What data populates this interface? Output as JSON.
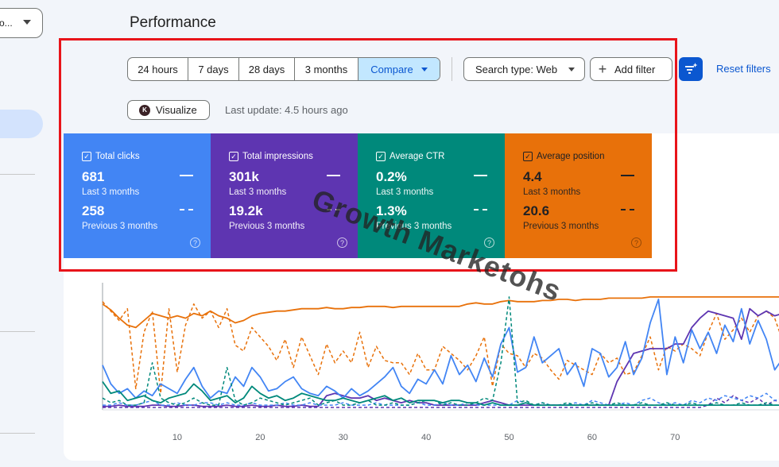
{
  "property_selector": {
    "label": "o..."
  },
  "page": {
    "title": "Performance"
  },
  "toolbar": {
    "ranges": [
      {
        "label": "24 hours"
      },
      {
        "label": "7 days"
      },
      {
        "label": "28 days"
      },
      {
        "label": "3 months"
      }
    ],
    "compare_label": "Compare",
    "search_type_label": "Search type: Web",
    "add_filter_label": "Add filter",
    "reset_filters_label": "Reset filters"
  },
  "visualize_label": "Visualize",
  "last_update": "Last update: 4.5 hours ago",
  "metrics": [
    {
      "label": "Total clicks",
      "value_current": "681",
      "period_current": "Last 3 months",
      "value_previous": "258",
      "period_previous": "Previous 3 months",
      "color": "#4285f4"
    },
    {
      "label": "Total impressions",
      "value_current": "301k",
      "period_current": "Last 3 months",
      "value_previous": "19.2k",
      "period_previous": "Previous 3 months",
      "color": "#5e35b1"
    },
    {
      "label": "Average CTR",
      "value_current": "0.2%",
      "period_current": "Last 3 months",
      "value_previous": "1.3%",
      "period_previous": "Previous 3 months",
      "color": "#00897b"
    },
    {
      "label": "Average position",
      "value_current": "4.4",
      "period_current": "Last 3 months",
      "value_previous": "20.6",
      "period_previous": "Previous 3 months",
      "color": "#e8710a"
    }
  ],
  "watermark": "Growth Marketohs",
  "chart_data": {
    "type": "line",
    "x": [
      1,
      2,
      3,
      4,
      5,
      6,
      7,
      8,
      9,
      10,
      11,
      12,
      13,
      14,
      15,
      16,
      17,
      18,
      19,
      20,
      21,
      22,
      23,
      24,
      25,
      26,
      27,
      28,
      29,
      30,
      31,
      32,
      33,
      34,
      35,
      36,
      37,
      38,
      39,
      40,
      41,
      42,
      43,
      44,
      45,
      46,
      47,
      48,
      49,
      50,
      51,
      52,
      53,
      54,
      55,
      56,
      57,
      58,
      59,
      60,
      61,
      62,
      63,
      64,
      65,
      66,
      67,
      68,
      69,
      70,
      71,
      72,
      73,
      74,
      75,
      76,
      77,
      78,
      79,
      80,
      81,
      82,
      83
    ],
    "xticks": [
      "10",
      "20",
      "30",
      "40",
      "50",
      "60",
      "70"
    ],
    "xtick_values": [
      10,
      20,
      30,
      40,
      50,
      60,
      70
    ],
    "xlim": [
      1,
      83
    ],
    "ylim": [
      0,
      100
    ],
    "grid": false,
    "series": [
      {
        "color": "#e8710a",
        "style": "solid",
        "values": [
          90,
          85,
          78,
          72,
          70,
          76,
          82,
          80,
          78,
          80,
          78,
          82,
          80,
          84,
          80,
          78,
          74,
          76,
          80,
          82,
          83,
          84,
          84,
          85,
          86,
          86,
          86,
          87,
          86,
          86,
          87,
          87,
          88,
          88,
          88,
          87,
          88,
          88,
          88,
          88,
          88,
          88,
          88,
          88,
          90,
          91,
          90,
          90,
          92,
          93,
          92,
          92,
          92,
          93,
          93,
          94,
          94,
          93,
          94,
          94,
          94,
          95,
          95,
          95,
          95,
          95,
          96,
          96,
          96,
          96,
          96,
          96,
          96,
          96,
          96,
          96,
          96,
          96,
          96,
          96,
          96,
          96,
          96
        ]
      },
      {
        "color": "#e8710a",
        "style": "dashed",
        "values": [
          92,
          84,
          76,
          86,
          18,
          66,
          84,
          14,
          86,
          32,
          72,
          90,
          78,
          84,
          70,
          86,
          55,
          50,
          70,
          62,
          54,
          42,
          60,
          36,
          62,
          46,
          30,
          56,
          40,
          50,
          40,
          66,
          36,
          54,
          42,
          40,
          40,
          30,
          48,
          34,
          34,
          54,
          48,
          42,
          34,
          46,
          62,
          20,
          56,
          48,
          46,
          36,
          48,
          44,
          34,
          26,
          42,
          38,
          34,
          30,
          48,
          40,
          44,
          30,
          32,
          46,
          62,
          34,
          54,
          50,
          56,
          52,
          46,
          66,
          82,
          60,
          68,
          78,
          66,
          80,
          84,
          78,
          58
        ]
      },
      {
        "color": "#5e35b1",
        "style": "solid",
        "values": [
          3,
          3,
          4,
          3,
          3,
          3,
          4,
          4,
          3,
          3,
          4,
          4,
          3,
          3,
          3,
          4,
          3,
          3,
          4,
          3,
          3,
          4,
          3,
          3,
          4,
          3,
          3,
          12,
          14,
          12,
          10,
          10,
          12,
          8,
          10,
          8,
          6,
          8,
          6,
          6,
          4,
          4,
          4,
          4,
          4,
          4,
          6,
          8,
          6,
          4,
          4,
          4,
          4,
          4,
          4,
          4,
          4,
          4,
          4,
          4,
          4,
          4,
          24,
          36,
          48,
          50,
          52,
          52,
          52,
          56,
          56,
          70,
          78,
          84,
          82,
          80,
          78,
          60,
          86,
          80,
          84,
          80,
          82
        ]
      },
      {
        "color": "#5e35b1",
        "style": "dashed",
        "values": [
          2,
          2,
          2,
          2,
          2,
          2,
          2,
          2,
          2,
          2,
          2,
          2,
          2,
          2,
          2,
          2,
          2,
          2,
          2,
          2,
          2,
          2,
          2,
          2,
          2,
          2,
          2,
          2,
          2,
          2,
          2,
          2,
          2,
          2,
          2,
          2,
          2,
          2,
          2,
          2,
          2,
          2,
          2,
          2,
          2,
          2,
          2,
          2,
          2,
          2,
          2,
          2,
          2,
          2,
          2,
          2,
          2,
          2,
          2,
          2,
          2,
          2,
          2,
          2,
          2,
          2,
          2,
          2,
          2,
          2,
          2,
          2,
          2,
          4,
          10,
          6,
          12,
          8,
          6,
          10,
          4,
          8,
          6
        ]
      },
      {
        "color": "#4285f4",
        "style": "solid",
        "values": [
          38,
          22,
          14,
          18,
          10,
          16,
          12,
          22,
          18,
          14,
          26,
          36,
          20,
          10,
          16,
          14,
          28,
          20,
          36,
          28,
          16,
          18,
          24,
          28,
          18,
          14,
          12,
          20,
          16,
          10,
          18,
          12,
          16,
          22,
          28,
          36,
          20,
          14,
          26,
          22,
          34,
          22,
          46,
          30,
          38,
          24,
          44,
          28,
          56,
          70,
          32,
          36,
          62,
          40,
          46,
          52,
          30,
          40,
          20,
          52,
          48,
          28,
          36,
          58,
          30,
          44,
          74,
          94,
          30,
          62,
          40,
          68,
          52,
          66,
          48,
          72,
          58,
          86,
          56,
          76,
          60,
          34,
          44
        ]
      },
      {
        "color": "#4285f4",
        "style": "dashed",
        "values": [
          4,
          4,
          6,
          4,
          4,
          6,
          8,
          4,
          4,
          6,
          4,
          4,
          6,
          6,
          4,
          6,
          4,
          4,
          6,
          4,
          4,
          4,
          6,
          4,
          4,
          6,
          4,
          4,
          4,
          6,
          4,
          4,
          4,
          6,
          4,
          4,
          4,
          4,
          6,
          4,
          4,
          6,
          4,
          4,
          6,
          4,
          4,
          4,
          4,
          4,
          8,
          6,
          4,
          6,
          4,
          4,
          4,
          6,
          4,
          8,
          6,
          4,
          4,
          6,
          4,
          8,
          10,
          6,
          4,
          6,
          4,
          8,
          6,
          10,
          8,
          12,
          10,
          8,
          12,
          10,
          14,
          8,
          10
        ]
      },
      {
        "color": "#00897b",
        "style": "solid",
        "values": [
          24,
          14,
          16,
          8,
          10,
          12,
          8,
          6,
          10,
          12,
          14,
          22,
          16,
          8,
          10,
          12,
          6,
          10,
          20,
          14,
          10,
          12,
          8,
          10,
          14,
          12,
          10,
          8,
          8,
          10,
          8,
          6,
          8,
          10,
          12,
          8,
          10,
          6,
          8,
          8,
          8,
          6,
          8,
          8,
          6,
          6,
          4,
          6,
          4,
          4,
          4,
          6,
          4,
          4,
          4,
          4,
          4,
          4,
          4,
          4,
          4,
          4,
          4,
          4,
          4,
          4,
          4,
          4,
          4,
          4,
          4,
          4,
          4,
          4,
          4,
          4,
          4,
          4,
          4,
          4,
          4,
          4,
          4
        ]
      },
      {
        "color": "#00897b",
        "style": "dashed",
        "values": [
          10,
          6,
          8,
          4,
          4,
          6,
          40,
          10,
          6,
          4,
          6,
          10,
          6,
          4,
          4,
          36,
          8,
          4,
          6,
          10,
          8,
          6,
          4,
          6,
          8,
          10,
          4,
          6,
          8,
          4,
          4,
          6,
          8,
          4,
          4,
          6,
          4,
          4,
          6,
          8,
          8,
          4,
          6,
          4,
          4,
          6,
          10,
          8,
          40,
          96,
          6,
          8,
          4,
          6,
          4,
          4,
          6,
          4,
          4,
          6,
          4,
          4,
          6,
          4,
          4,
          6,
          4,
          4,
          6,
          4,
          4,
          6,
          4,
          4,
          6,
          4,
          4,
          6,
          4,
          4,
          6,
          4,
          4
        ]
      }
    ]
  }
}
